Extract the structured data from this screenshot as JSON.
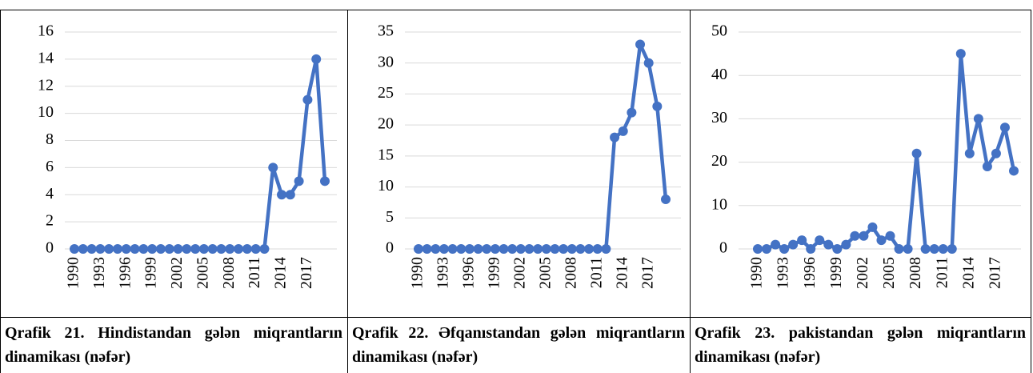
{
  "chart_data": [
    {
      "type": "line",
      "caption": "Qrafik 21. Hindistandan gələn miqrantların dinamikası (nəfər)",
      "categories": [
        "1990",
        null,
        null,
        "1993",
        null,
        null,
        "1996",
        null,
        null,
        "1999",
        null,
        null,
        "2002",
        null,
        null,
        "2005",
        null,
        null,
        "2008",
        null,
        null,
        "2011",
        null,
        null,
        "2014",
        null,
        null,
        "2017",
        null,
        null
      ],
      "values": [
        0,
        0,
        0,
        0,
        0,
        0,
        0,
        0,
        0,
        0,
        0,
        0,
        0,
        0,
        0,
        0,
        0,
        0,
        0,
        0,
        0,
        0,
        0,
        6,
        4,
        4,
        5,
        11,
        14,
        5
      ],
      "color": "#4472c4",
      "ylim": [
        0,
        16
      ],
      "yticks": [
        0,
        2,
        4,
        6,
        8,
        10,
        12,
        14,
        16
      ],
      "grid": true
    },
    {
      "type": "line",
      "caption": "Qrafik 22. Əfqanıstandan gələn miqrantların dinamikası (nəfər)",
      "categories": [
        "1990",
        null,
        null,
        "1993",
        null,
        null,
        "1996",
        null,
        null,
        "1999",
        null,
        null,
        "2002",
        null,
        null,
        "2005",
        null,
        null,
        "2008",
        null,
        null,
        "2011",
        null,
        null,
        "2014",
        null,
        null,
        "2017",
        null,
        null
      ],
      "values": [
        0,
        0,
        0,
        0,
        0,
        0,
        0,
        0,
        0,
        0,
        0,
        0,
        0,
        0,
        0,
        0,
        0,
        0,
        0,
        0,
        0,
        0,
        0,
        18,
        19,
        22,
        33,
        30,
        23,
        8
      ],
      "color": "#4472c4",
      "ylim": [
        0,
        35
      ],
      "yticks": [
        0,
        5,
        10,
        15,
        20,
        25,
        30,
        35
      ],
      "grid": true
    },
    {
      "type": "line",
      "caption": "Qrafik 23. pakistandan gələn miqrantların dinamikası (nəfər)",
      "categories": [
        "1990",
        null,
        null,
        "1993",
        null,
        null,
        "1996",
        null,
        null,
        "1999",
        null,
        null,
        "2002",
        null,
        null,
        "2005",
        null,
        null,
        "2008",
        null,
        null,
        "2011",
        null,
        null,
        "2014",
        null,
        null,
        "2017",
        null,
        null
      ],
      "values": [
        0,
        0,
        1,
        0,
        1,
        2,
        0,
        2,
        1,
        0,
        1,
        3,
        3,
        5,
        2,
        3,
        0,
        0,
        22,
        0,
        0,
        0,
        0,
        45,
        22,
        30,
        19,
        22,
        28,
        18
      ],
      "color": "#4472c4",
      "ylim": [
        0,
        50
      ],
      "yticks": [
        0,
        10,
        20,
        30,
        40,
        50
      ],
      "grid": true
    }
  ]
}
